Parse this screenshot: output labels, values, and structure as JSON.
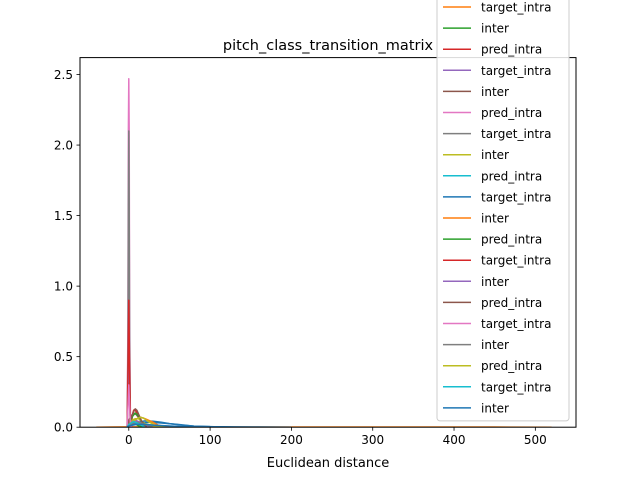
{
  "chart_data": {
    "type": "line",
    "title": "pitch_class_transition_matrix",
    "xlabel": "Euclidean distance",
    "ylabel": "",
    "xlim": [
      -60,
      550
    ],
    "ylim": [
      0,
      2.62
    ],
    "xticks": [
      0,
      100,
      200,
      300,
      400,
      500
    ],
    "yticks": [
      0.0,
      0.5,
      1.0,
      1.5,
      2.0,
      2.5
    ],
    "xtick_labels": [
      "0",
      "100",
      "200",
      "300",
      "400",
      "500"
    ],
    "ytick_labels": [
      "0.0",
      "0.5",
      "1.0",
      "1.5",
      "2.0",
      "2.5"
    ],
    "grid": false,
    "legend_placement": "top-right, extending above the plot area",
    "series": [
      {
        "name": "pred_intra",
        "color": "#1f77b4",
        "x": [
          -2,
          0,
          2,
          4,
          8,
          15,
          25,
          40,
          60,
          80,
          110,
          130
        ],
        "y": [
          0,
          0.02,
          0.01,
          0.02,
          0.03,
          0.03,
          0.035,
          0.03,
          0.02,
          0.008,
          0.002,
          0
        ]
      },
      {
        "name": "target_intra",
        "color": "#ff7f0e",
        "x": [
          -40,
          -20,
          0,
          50,
          150,
          250,
          350,
          450,
          520
        ],
        "y": [
          0,
          0.001,
          0.002,
          0.002,
          0.001,
          0.001,
          0.001,
          0.001,
          0
        ]
      },
      {
        "name": "inter",
        "color": "#2ca02c",
        "x": [
          -2,
          -1,
          0,
          1,
          2,
          6,
          12,
          20
        ],
        "y": [
          0,
          0.2,
          0.45,
          0.2,
          0.02,
          0.03,
          0.01,
          0
        ]
      },
      {
        "name": "pred_intra",
        "color": "#d62728",
        "x": [
          -2,
          0,
          2,
          4,
          5,
          6,
          7,
          8,
          10,
          12,
          14,
          18,
          25
        ],
        "y": [
          0,
          0.04,
          0.03,
          0.06,
          0.1,
          0.12,
          0.125,
          0.12,
          0.1,
          0.08,
          0.05,
          0.02,
          0
        ]
      },
      {
        "name": "target_intra",
        "color": "#9467bd",
        "x": [
          -2,
          -1,
          0,
          1,
          2,
          4
        ],
        "y": [
          0,
          0.3,
          0.6,
          0.3,
          0.02,
          0
        ]
      },
      {
        "name": "inter",
        "color": "#8c564b",
        "x": [
          -2,
          0,
          3,
          6,
          9,
          12,
          16,
          20
        ],
        "y": [
          0,
          0.05,
          0.08,
          0.1,
          0.09,
          0.07,
          0.03,
          0
        ]
      },
      {
        "name": "pred_intra",
        "color": "#e377c2",
        "x": [
          -2,
          -1,
          -0.5,
          0,
          0.5,
          1,
          2,
          3
        ],
        "y": [
          0,
          0.8,
          2.1,
          2.47,
          2.1,
          0.8,
          0.05,
          0
        ]
      },
      {
        "name": "target_intra",
        "color": "#7f7f7f",
        "x": [
          -2,
          -1,
          -0.5,
          0,
          0.5,
          1,
          2,
          3
        ],
        "y": [
          0,
          0.6,
          1.6,
          2.1,
          1.6,
          0.6,
          0.05,
          0
        ]
      },
      {
        "name": "inter",
        "color": "#bcbd22",
        "x": [
          -2,
          0,
          4,
          8,
          12,
          16,
          20,
          30,
          45
        ],
        "y": [
          0,
          0.03,
          0.05,
          0.06,
          0.06,
          0.04,
          0.025,
          0.01,
          0
        ]
      },
      {
        "name": "pred_intra",
        "color": "#17becf",
        "x": [
          -2,
          0,
          5,
          10,
          20,
          30,
          40,
          55
        ],
        "y": [
          0,
          0.01,
          0.02,
          0.025,
          0.02,
          0.015,
          0.008,
          0
        ]
      },
      {
        "name": "target_intra",
        "color": "#1f77b4",
        "x": [
          -2,
          0,
          5,
          10,
          15,
          20,
          30,
          40,
          50,
          65,
          80,
          100,
          130,
          160,
          200
        ],
        "y": [
          0,
          0.01,
          0.02,
          0.03,
          0.04,
          0.045,
          0.042,
          0.035,
          0.025,
          0.015,
          0.008,
          0.004,
          0.002,
          0.001,
          0
        ]
      },
      {
        "name": "inter",
        "color": "#ff7f0e",
        "x": [
          -2,
          0,
          5,
          10,
          15,
          20,
          28,
          36,
          50
        ],
        "y": [
          0,
          0.02,
          0.04,
          0.06,
          0.07,
          0.06,
          0.04,
          0.015,
          0
        ]
      },
      {
        "name": "pred_intra",
        "color": "#2ca02c",
        "x": [
          -2,
          0,
          2,
          5,
          8,
          12,
          16,
          22
        ],
        "y": [
          0,
          0.03,
          0.05,
          0.08,
          0.1,
          0.08,
          0.04,
          0
        ]
      },
      {
        "name": "target_intra",
        "color": "#d62728",
        "x": [
          -2,
          -1,
          0,
          1,
          2,
          4
        ],
        "y": [
          0,
          0.4,
          0.9,
          0.4,
          0.02,
          0
        ]
      },
      {
        "name": "inter",
        "color": "#9467bd",
        "x": [
          -2,
          0,
          4,
          8,
          12,
          18,
          25
        ],
        "y": [
          0,
          0.02,
          0.04,
          0.05,
          0.04,
          0.02,
          0
        ]
      },
      {
        "name": "pred_intra",
        "color": "#8c564b",
        "x": [
          -2,
          0,
          3,
          6,
          8,
          10,
          13,
          16,
          22
        ],
        "y": [
          0,
          0.03,
          0.07,
          0.11,
          0.13,
          0.12,
          0.08,
          0.04,
          0
        ]
      },
      {
        "name": "target_intra",
        "color": "#e377c2",
        "x": [
          -2,
          -1,
          0,
          1,
          2,
          4
        ],
        "y": [
          0,
          0.15,
          0.3,
          0.15,
          0.01,
          0
        ]
      },
      {
        "name": "inter",
        "color": "#7f7f7f",
        "x": [
          -2,
          0,
          5,
          10,
          15,
          22,
          30
        ],
        "y": [
          0,
          0.015,
          0.03,
          0.035,
          0.03,
          0.015,
          0
        ]
      },
      {
        "name": "pred_intra",
        "color": "#bcbd22",
        "x": [
          -2,
          0,
          5,
          10,
          14,
          18,
          24,
          32,
          45
        ],
        "y": [
          0,
          0.02,
          0.04,
          0.06,
          0.07,
          0.065,
          0.04,
          0.015,
          0
        ]
      },
      {
        "name": "target_intra",
        "color": "#17becf",
        "x": [
          -2,
          0,
          3,
          6,
          10,
          15,
          20
        ],
        "y": [
          0,
          0.02,
          0.03,
          0.04,
          0.03,
          0.015,
          0
        ]
      },
      {
        "name": "inter",
        "color": "#1f77b4",
        "x": [
          -2,
          0,
          5,
          10,
          20,
          30,
          45,
          60,
          80,
          100,
          120
        ],
        "y": [
          0,
          0.01,
          0.015,
          0.02,
          0.02,
          0.015,
          0.01,
          0.006,
          0.003,
          0.001,
          0
        ]
      }
    ]
  }
}
